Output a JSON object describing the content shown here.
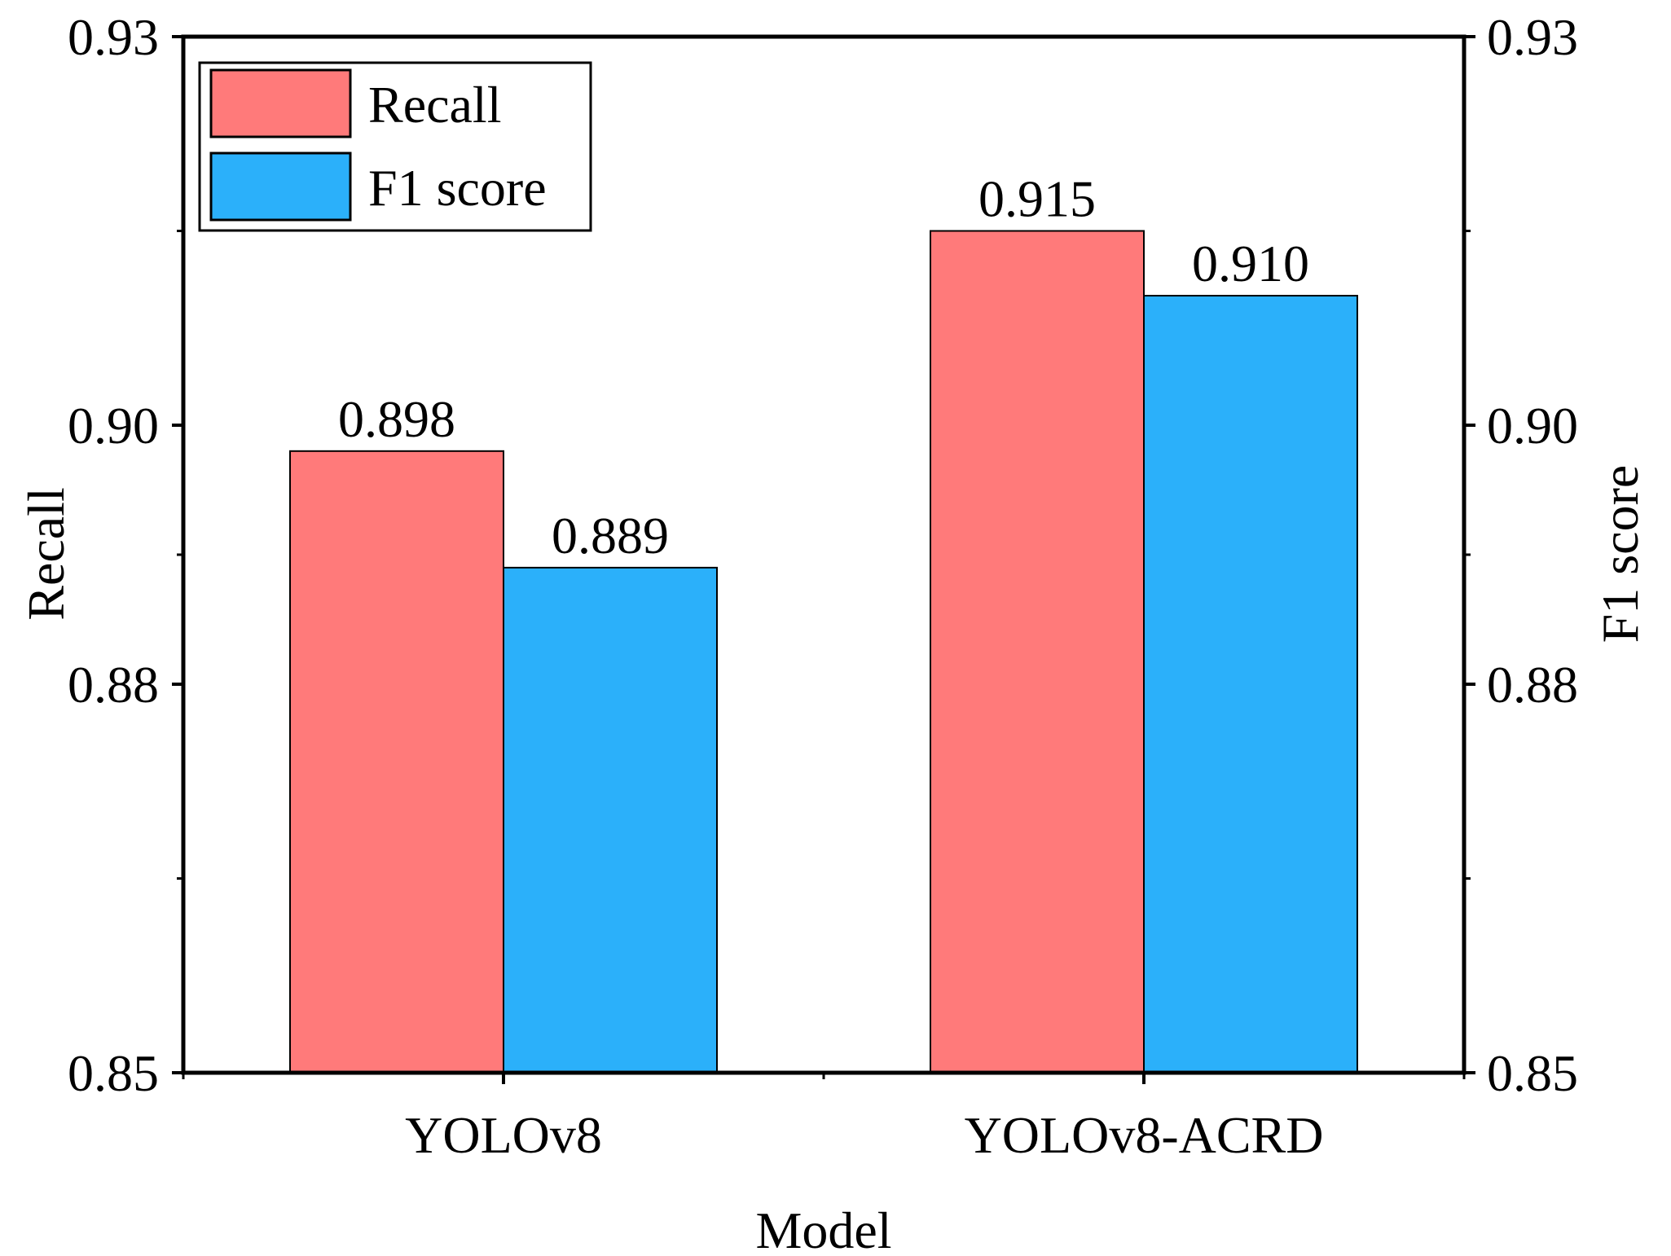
{
  "chart_data": {
    "type": "bar",
    "categories": [
      "YOLOv8",
      "YOLOv8-ACRD"
    ],
    "series": [
      {
        "name": "Recall",
        "axis": "left",
        "color": "#FF7A7A",
        "values": [
          0.898,
          0.915
        ],
        "labels": [
          "0.898",
          "0.915"
        ]
      },
      {
        "name": "F1 score",
        "axis": "right",
        "color": "#2BB0FA",
        "values": [
          0.889,
          0.91
        ],
        "labels": [
          "0.889",
          "0.910"
        ]
      }
    ],
    "title": "",
    "xlabel": "Model",
    "ylabel": "Recall",
    "y2label": "F1 score",
    "ylim": [
      0.85,
      0.93
    ],
    "y2lim": [
      0.85,
      0.93
    ],
    "yticks": [
      0.85,
      0.88,
      0.9,
      0.93
    ],
    "ytick_labels": [
      "0.85",
      "0.88",
      "0.90",
      "0.93"
    ],
    "legend": "top-left",
    "grid": false
  }
}
